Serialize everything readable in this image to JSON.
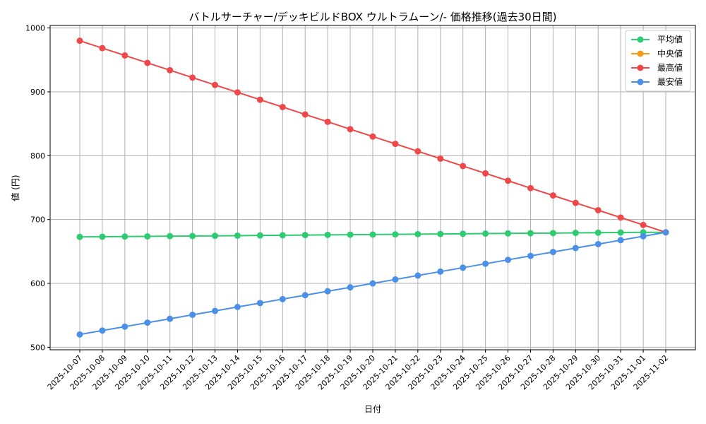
{
  "chart_data": {
    "type": "line",
    "title": "バトルサーチャー/デッキビルドBOX ウルトラムーン/- 価格推移(過去30日間)",
    "xlabel": "日付",
    "ylabel": "値 (円)",
    "ylim": [
      496,
      1004
    ],
    "yticks": [
      500,
      600,
      700,
      800,
      900,
      1000
    ],
    "grid": true,
    "legend_position": "top-right",
    "categories": [
      "2025-10-07",
      "2025-10-08",
      "2025-10-09",
      "2025-10-10",
      "2025-10-11",
      "2025-10-12",
      "2025-10-13",
      "2025-10-14",
      "2025-10-15",
      "2025-10-16",
      "2025-10-17",
      "2025-10-18",
      "2025-10-19",
      "2025-10-20",
      "2025-10-21",
      "2025-10-22",
      "2025-10-23",
      "2025-10-24",
      "2025-10-25",
      "2025-10-26",
      "2025-10-27",
      "2025-10-28",
      "2025-10-29",
      "2025-10-30",
      "2025-10-31",
      "2025-11-01",
      "2025-11-02"
    ],
    "series": [
      {
        "name": "平均値",
        "color": "#2ecc71",
        "values": [
          672.8,
          673.1,
          673.4,
          673.7,
          674.0,
          674.2,
          674.5,
          674.8,
          675.1,
          675.4,
          675.7,
          676.0,
          676.3,
          676.5,
          676.8,
          677.1,
          677.4,
          677.7,
          678.0,
          678.3,
          678.6,
          678.8,
          679.1,
          679.4,
          679.7,
          680.0,
          680.0
        ]
      },
      {
        "name": "中央値",
        "color": "#f39c12",
        "values": [
          null,
          null,
          null,
          null,
          null,
          null,
          null,
          null,
          null,
          null,
          null,
          null,
          null,
          null,
          null,
          null,
          null,
          null,
          null,
          null,
          null,
          null,
          null,
          null,
          null,
          null,
          680
        ]
      },
      {
        "name": "最高値",
        "color": "#f04848",
        "values": [
          980.0,
          968.5,
          957.0,
          945.4,
          933.9,
          922.3,
          910.8,
          899.2,
          887.7,
          876.2,
          864.6,
          853.1,
          841.5,
          830.0,
          818.5,
          806.9,
          795.4,
          783.8,
          772.3,
          760.8,
          749.2,
          737.7,
          726.1,
          714.6,
          703.1,
          691.5,
          680.0
        ]
      },
      {
        "name": "最安値",
        "color": "#4a90e8",
        "values": [
          520.0,
          526.2,
          532.3,
          538.5,
          544.6,
          550.8,
          556.9,
          563.1,
          569.2,
          575.4,
          581.5,
          587.7,
          593.8,
          600.0,
          606.2,
          612.3,
          618.5,
          624.6,
          630.8,
          636.9,
          643.1,
          649.2,
          655.4,
          661.5,
          667.7,
          673.8,
          680.0
        ]
      }
    ]
  }
}
